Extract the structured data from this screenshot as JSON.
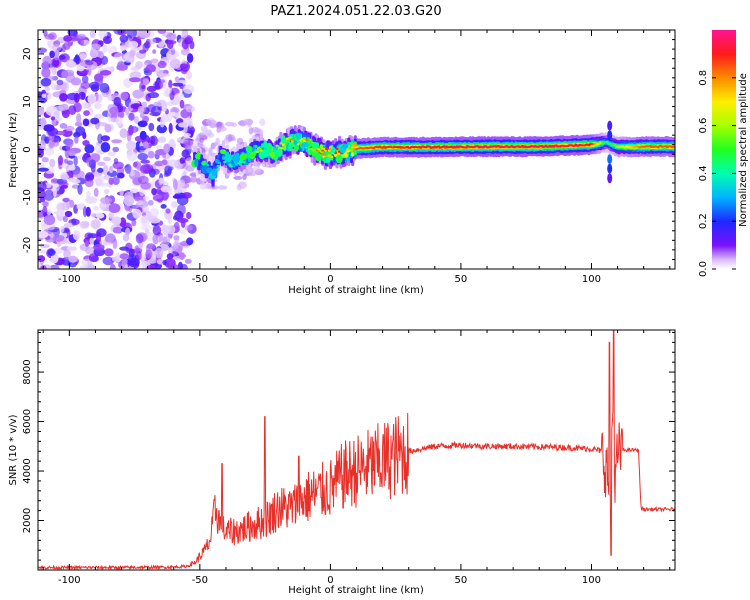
{
  "title": "PAZ1.2024.051.22.03.G20",
  "colors": {
    "snr_line": "#e8302a",
    "track_core": "#ff2020",
    "speckle": "#7a10ff"
  },
  "chart_data": [
    {
      "type": "heatmap",
      "title": "PAZ1.2024.051.22.03.G20",
      "xlabel": "Height of straight line (km)",
      "ylabel": "Frequency (Hz)",
      "xlim": [
        -112,
        132
      ],
      "ylim": [
        -25,
        25
      ],
      "xticks": [
        -100,
        -50,
        0,
        50,
        100
      ],
      "yticks": [
        -20,
        -10,
        0,
        10,
        20
      ],
      "colormap": "gist_rainbow_r",
      "colorbar": {
        "label": "Normalized spectral amplitude",
        "range": [
          0,
          1
        ],
        "ticks": [
          "0.0",
          "0.2",
          "0.4",
          "0.6",
          "0.8"
        ]
      },
      "noise_region_x": [
        -112,
        -53
      ],
      "track": [
        {
          "x": -52,
          "f": -1.5,
          "amp": 0.25
        },
        {
          "x": -48,
          "f": -3.5,
          "amp": 0.3
        },
        {
          "x": -45,
          "f": -5.5,
          "amp": 0.4
        },
        {
          "x": -42,
          "f": -1.0,
          "amp": 0.35
        },
        {
          "x": -38,
          "f": -2.5,
          "amp": 0.4
        },
        {
          "x": -34,
          "f": -2.0,
          "amp": 0.45
        },
        {
          "x": -30,
          "f": -0.5,
          "amp": 0.5
        },
        {
          "x": -26,
          "f": 0.0,
          "amp": 0.55
        },
        {
          "x": -22,
          "f": -0.8,
          "amp": 0.55
        },
        {
          "x": -18,
          "f": 0.8,
          "amp": 0.65
        },
        {
          "x": -14,
          "f": 1.8,
          "amp": 0.7
        },
        {
          "x": -10,
          "f": 1.5,
          "amp": 0.75
        },
        {
          "x": -6,
          "f": 0.2,
          "amp": 0.7
        },
        {
          "x": -2,
          "f": -0.8,
          "amp": 0.8
        },
        {
          "x": 2,
          "f": -0.8,
          "amp": 0.85
        },
        {
          "x": 6,
          "f": -0.2,
          "amp": 0.8
        },
        {
          "x": 10,
          "f": 0.2,
          "amp": 0.85
        },
        {
          "x": 20,
          "f": 0.5,
          "amp": 0.88
        },
        {
          "x": 40,
          "f": 0.5,
          "amp": 0.92
        },
        {
          "x": 60,
          "f": 0.6,
          "amp": 0.95
        },
        {
          "x": 80,
          "f": 0.6,
          "amp": 0.95
        },
        {
          "x": 100,
          "f": 1.0,
          "amp": 0.9
        },
        {
          "x": 106,
          "f": 1.5,
          "amp": 0.4
        },
        {
          "x": 110,
          "f": 0.5,
          "amp": 0.6
        },
        {
          "x": 120,
          "f": 0.6,
          "amp": 0.85
        },
        {
          "x": 132,
          "f": 0.6,
          "amp": 0.85
        }
      ]
    },
    {
      "type": "line",
      "xlabel": "Height of straight line (km)",
      "ylabel": "SNR (10 * v/v)",
      "xlim": [
        -112,
        132
      ],
      "ylim": [
        0,
        9700
      ],
      "xticks": [
        -100,
        -50,
        0,
        50,
        100
      ],
      "yticks": [
        2000,
        4000,
        6000,
        8000
      ],
      "series": [
        {
          "x": [
            -112,
            -100,
            -80,
            -60,
            -55,
            -52,
            -48,
            -46,
            -44,
            -42,
            -40,
            -35,
            -30,
            -25,
            -20,
            -15,
            -10,
            -5,
            0,
            5,
            10,
            15,
            20,
            25,
            30,
            35,
            40,
            50,
            60,
            70,
            80,
            90,
            100,
            104,
            106,
            107,
            108,
            109,
            110,
            112,
            118,
            119,
            120,
            132
          ],
          "y": [
            100,
            100,
            100,
            120,
            150,
            300,
            800,
            1200,
            2500,
            1800,
            1500,
            1600,
            1800,
            2000,
            2500,
            2500,
            2900,
            3100,
            3300,
            3800,
            4000,
            4200,
            4400,
            4600,
            4800,
            4900,
            5000,
            5050,
            5000,
            5000,
            4980,
            4950,
            4900,
            4800,
            4000,
            3000,
            6500,
            3000,
            4700,
            4850,
            4850,
            2500,
            2450,
            2450
          ]
        }
      ],
      "spikes": [
        {
          "x": -41.5,
          "y": 4300
        },
        {
          "x": -25,
          "y": 6200
        },
        {
          "x": -12,
          "y": 4600
        },
        {
          "x": 107,
          "y": 9200
        },
        {
          "x": 108.5,
          "y": 9700
        },
        {
          "x": 107.5,
          "y": 600
        }
      ]
    }
  ]
}
